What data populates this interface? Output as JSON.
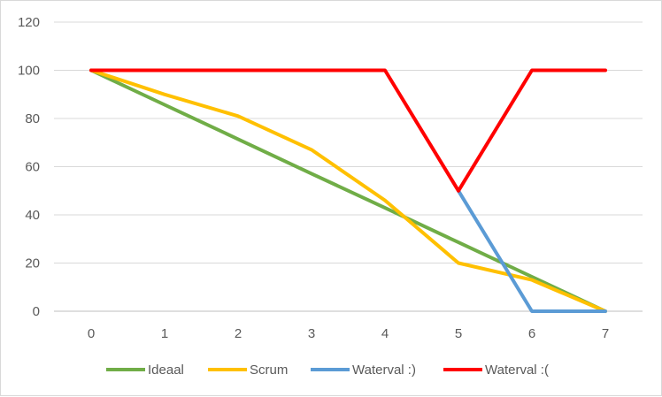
{
  "chart_data": {
    "type": "line",
    "title": "",
    "xlabel": "",
    "ylabel": "",
    "x": [
      0,
      1,
      2,
      3,
      4,
      5,
      6,
      7
    ],
    "xlim": [
      0,
      7
    ],
    "ylim": [
      0,
      120
    ],
    "y_ticks": [
      0,
      20,
      40,
      60,
      80,
      100,
      120
    ],
    "grid": true,
    "legend_position": "bottom",
    "series": [
      {
        "name": "Ideaal",
        "color": "#70ad47",
        "x": [
          0,
          1,
          2,
          3,
          4,
          5,
          6,
          7
        ],
        "values": [
          100,
          85.7,
          71.4,
          57.1,
          42.9,
          28.6,
          14.3,
          0
        ]
      },
      {
        "name": "Scrum",
        "color": "#ffc000",
        "x": [
          0,
          1,
          2,
          3,
          4,
          5,
          6,
          7
        ],
        "values": [
          100,
          90,
          81,
          67,
          46,
          20,
          13,
          0
        ]
      },
      {
        "name": "Waterval :)",
        "color": "#5b9bd5",
        "x": [
          5,
          6,
          7
        ],
        "values": [
          50,
          0,
          0
        ]
      },
      {
        "name": "Waterval :(",
        "color": "#ff0000",
        "x": [
          0,
          1,
          2,
          3,
          4,
          5,
          6,
          7
        ],
        "values": [
          100,
          100,
          100,
          100,
          100,
          50,
          100,
          100
        ]
      }
    ]
  }
}
